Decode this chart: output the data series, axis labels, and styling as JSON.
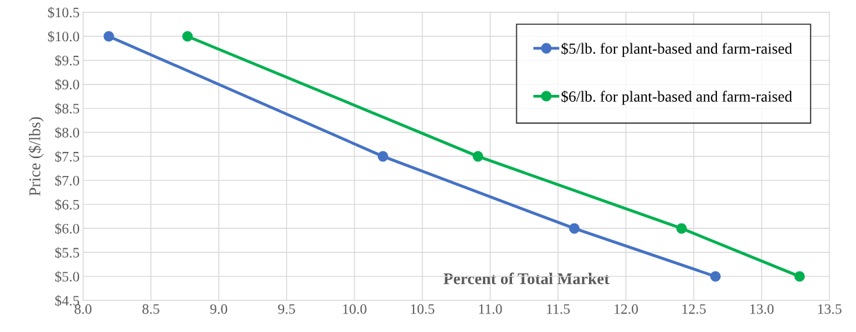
{
  "chart_data": {
    "type": "line",
    "xlabel": "Percent of Total Market",
    "ylabel": "Price ($/lbs)",
    "xlim": [
      8.0,
      13.5
    ],
    "xticks": [
      {
        "value": 8.0,
        "label": "8.0"
      },
      {
        "value": 8.5,
        "label": "8.5"
      },
      {
        "value": 9.0,
        "label": "9.0"
      },
      {
        "value": 9.5,
        "label": "9.5"
      },
      {
        "value": 10.0,
        "label": "10.0"
      },
      {
        "value": 10.5,
        "label": "10.5"
      },
      {
        "value": 11.0,
        "label": "11.0"
      },
      {
        "value": 11.5,
        "label": "11.5"
      },
      {
        "value": 12.0,
        "label": "12.0"
      },
      {
        "value": 12.5,
        "label": "12.5"
      },
      {
        "value": 13.0,
        "label": "13.0"
      },
      {
        "value": 13.5,
        "label": "13.5"
      }
    ],
    "ylim": [
      4.5,
      10.5
    ],
    "yticks": [
      {
        "value": 4.5,
        "label": "$4.5"
      },
      {
        "value": 5.0,
        "label": "$5.0"
      },
      {
        "value": 5.5,
        "label": "$5.5"
      },
      {
        "value": 6.0,
        "label": "$6.0"
      },
      {
        "value": 6.5,
        "label": "$6.5"
      },
      {
        "value": 7.0,
        "label": "$7.0"
      },
      {
        "value": 7.5,
        "label": "$7.5"
      },
      {
        "value": 8.0,
        "label": "$8.0"
      },
      {
        "value": 8.5,
        "label": "$8.5"
      },
      {
        "value": 9.0,
        "label": "$9.0"
      },
      {
        "value": 9.5,
        "label": "$9.5"
      },
      {
        "value": 10.0,
        "label": "$10.0"
      },
      {
        "value": 10.5,
        "label": "$10.5"
      }
    ],
    "grid": true,
    "legend": "top right",
    "marker": "circle",
    "line_style": "solid",
    "series": [
      {
        "name": "$5/lb. for plant-based and farm-raised",
        "color": "#4472c4",
        "x": [
          8.19,
          10.21,
          11.62,
          12.66
        ],
        "values": [
          10.0,
          7.5,
          6.0,
          5.0
        ]
      },
      {
        "name": "$6/lb. for plant-based and farm-raised",
        "color": "#00b050",
        "x": [
          8.77,
          10.91,
          12.41,
          13.28
        ],
        "values": [
          10.0,
          7.5,
          6.0,
          5.0
        ]
      }
    ]
  }
}
